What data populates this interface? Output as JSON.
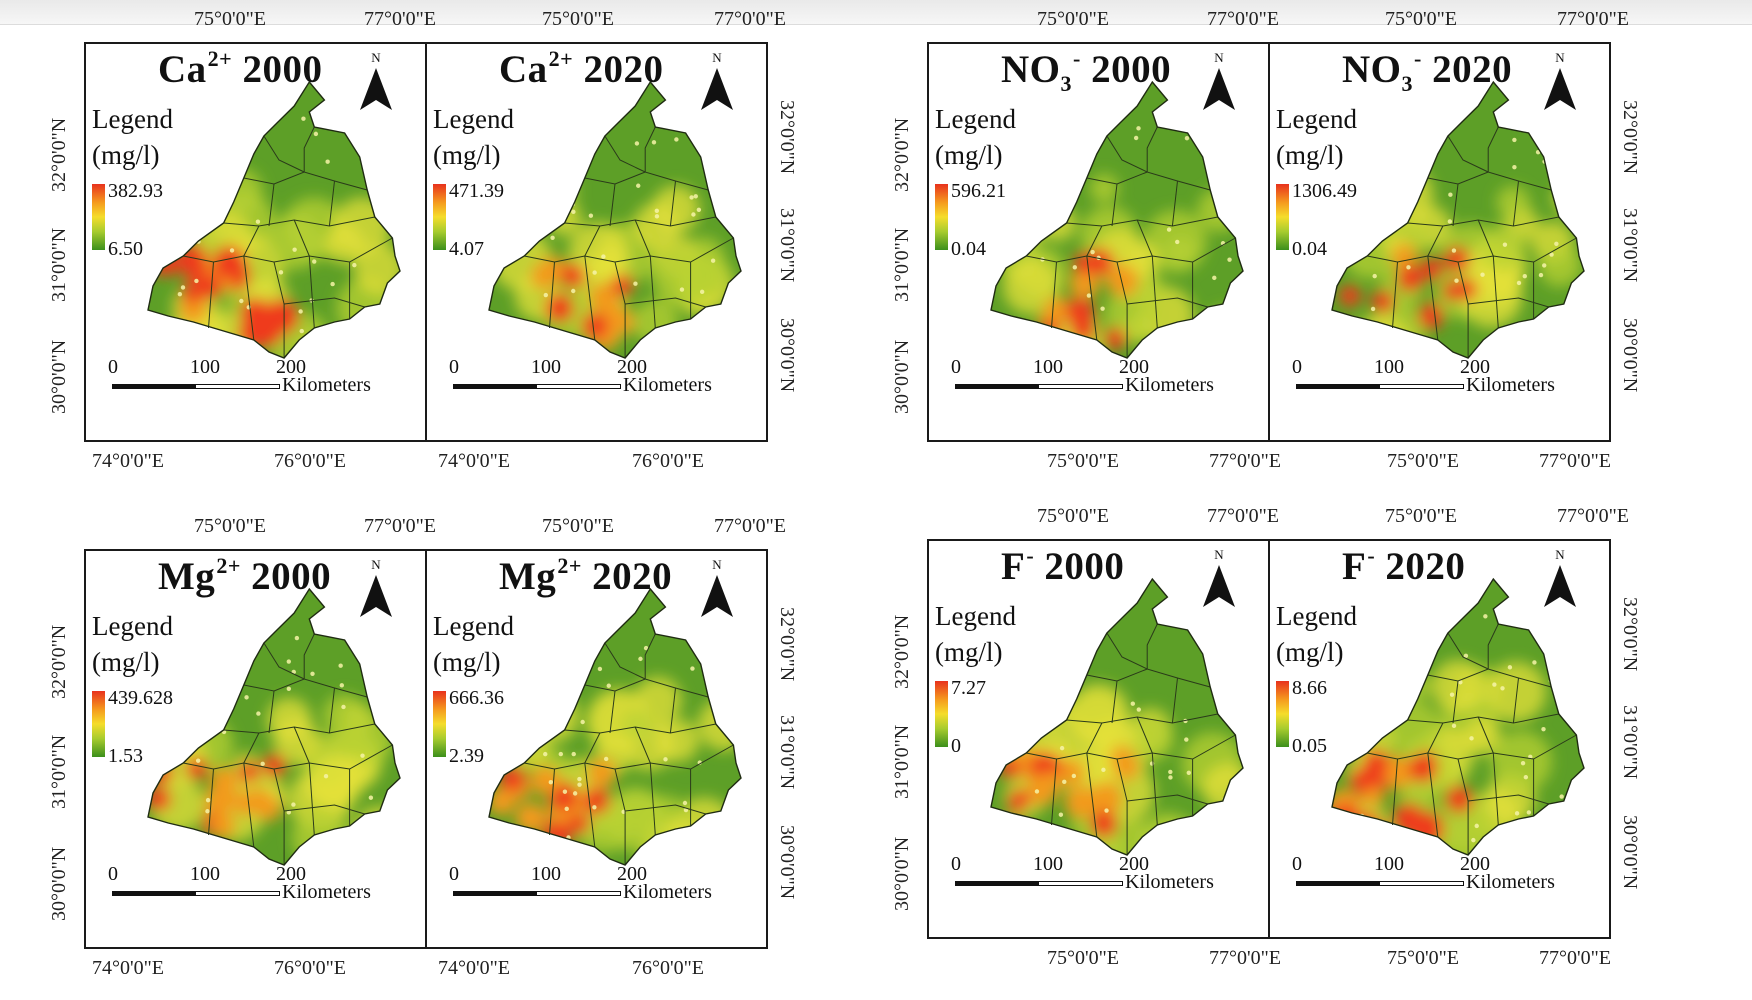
{
  "coords": {
    "lon_75": "75°0'0\"E",
    "lon_77": "77°0'0\"E",
    "lon_74": "74°0'0\"E",
    "lon_76": "76°0'0\"E",
    "lat_32": "32°0'0\"N",
    "lat_31": "31°0'0\"N",
    "lat_30": "30°0'0\"N"
  },
  "legend_title": "Legend",
  "legend_unit": "(mg/l)",
  "north_letter": "N",
  "scale": {
    "n0": "0",
    "n100": "100",
    "n200": "200",
    "unit": "Kilometers"
  },
  "groups": [
    {
      "parameter": "Ca2+",
      "panels": [
        {
          "title_base": "Ca",
          "title_sup": "2+",
          "year": "2000",
          "max": "382.93",
          "min": "6.50",
          "intensity": 0.6
        },
        {
          "title_base": "Ca",
          "title_sup": "2+",
          "year": "2020",
          "max": "471.39",
          "min": "4.07",
          "intensity": 0.35
        }
      ]
    },
    {
      "parameter": "NO3-",
      "panels": [
        {
          "title_base": "NO",
          "title_sub": "3",
          "title_sup": "-",
          "year": "2000",
          "max": "596.21",
          "min": "0.04",
          "intensity": 0.45
        },
        {
          "title_base": "NO",
          "title_sub": "3",
          "title_sup": "-",
          "year": "2020",
          "max": "1306.49",
          "min": "0.04",
          "intensity": 0.25
        }
      ]
    },
    {
      "parameter": "Mg2+",
      "panels": [
        {
          "title_base": "Mg",
          "title_sup": "2+",
          "year": "2000",
          "max": "439.628",
          "min": "1.53",
          "intensity": 0.45
        },
        {
          "title_base": "Mg",
          "title_sup": "2+",
          "year": "2020",
          "max": "666.36",
          "min": "2.39",
          "intensity": 0.4
        }
      ]
    },
    {
      "parameter": "F-",
      "panels": [
        {
          "title_base": "F",
          "title_sup": "-",
          "year": "2000",
          "max": "7.27",
          "min": "0",
          "intensity": 0.55
        },
        {
          "title_base": "F",
          "title_sup": "-",
          "year": "2020",
          "max": "8.66",
          "min": "0.05",
          "intensity": 0.55
        }
      ]
    }
  ],
  "colors": {
    "high": "#e8321d",
    "mid": "#f5dd2b",
    "low": "#3c8f1c",
    "frame": "#1a1a1a"
  }
}
